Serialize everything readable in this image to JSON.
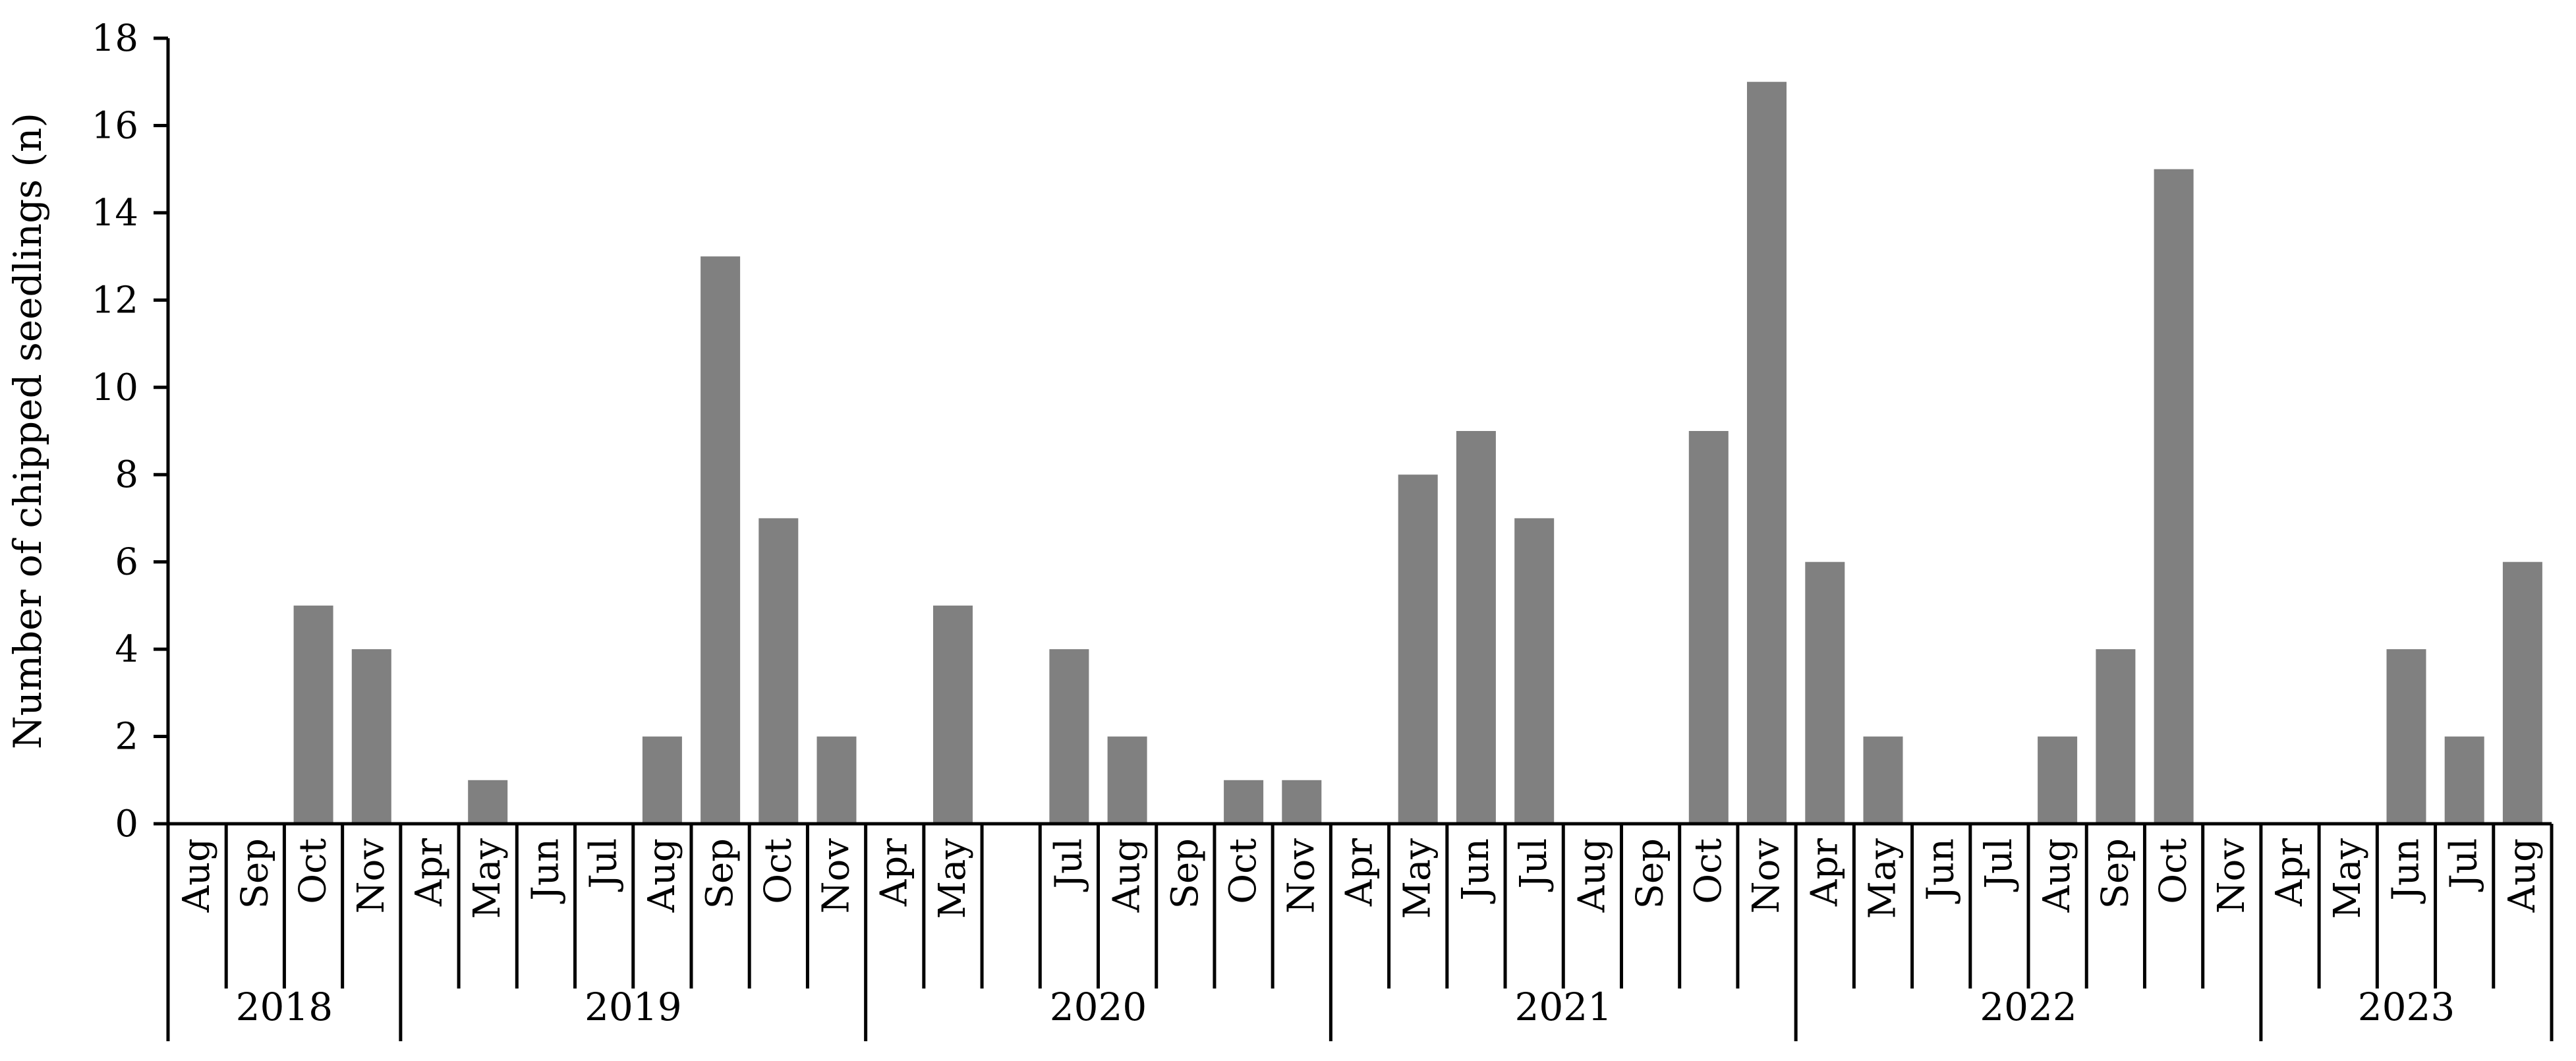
{
  "chart_data": {
    "type": "bar",
    "title": "",
    "xlabel": "",
    "ylabel": "Number of chipped seedlings (n)",
    "ylim": [
      0,
      18
    ],
    "yticks": [
      "0",
      "2",
      "4",
      "6",
      "8",
      "10",
      "12",
      "14",
      "16",
      "18"
    ],
    "grid": false,
    "legend": "none",
    "bar_color": "#808080",
    "axis_color": "#000000",
    "groups": [
      {
        "year": "2018",
        "months": [
          "Aug",
          "Sep",
          "Oct",
          "Nov"
        ],
        "values": [
          0,
          0,
          5,
          4
        ]
      },
      {
        "year": "2019",
        "months": [
          "Apr",
          "May",
          "Jun",
          "Jul",
          "Aug",
          "Sep",
          "Oct",
          "Nov"
        ],
        "values": [
          0,
          1,
          0,
          0,
          2,
          13,
          7,
          2
        ]
      },
      {
        "year": "2020",
        "months": [
          "Apr",
          "May",
          "",
          "Jul",
          "Aug",
          "Sep",
          "Oct",
          "Nov"
        ],
        "values": [
          0,
          5,
          0,
          4,
          2,
          0,
          1,
          1
        ]
      },
      {
        "year": "2021",
        "months": [
          "Apr",
          "May",
          "Jun",
          "Jul",
          "Aug",
          "Sep",
          "Oct",
          "Nov"
        ],
        "values": [
          0,
          8,
          9,
          7,
          0,
          0,
          9,
          17
        ]
      },
      {
        "year": "2022",
        "months": [
          "Apr",
          "May",
          "Jun",
          "Jul",
          "Aug",
          "Sep",
          "Oct",
          "Nov"
        ],
        "values": [
          6,
          2,
          0,
          0,
          2,
          4,
          15,
          0
        ]
      },
      {
        "year": "2023",
        "months": [
          "Apr",
          "May",
          "Jun",
          "Jul",
          "Aug"
        ],
        "values": [
          0,
          0,
          4,
          2,
          6
        ]
      }
    ]
  }
}
